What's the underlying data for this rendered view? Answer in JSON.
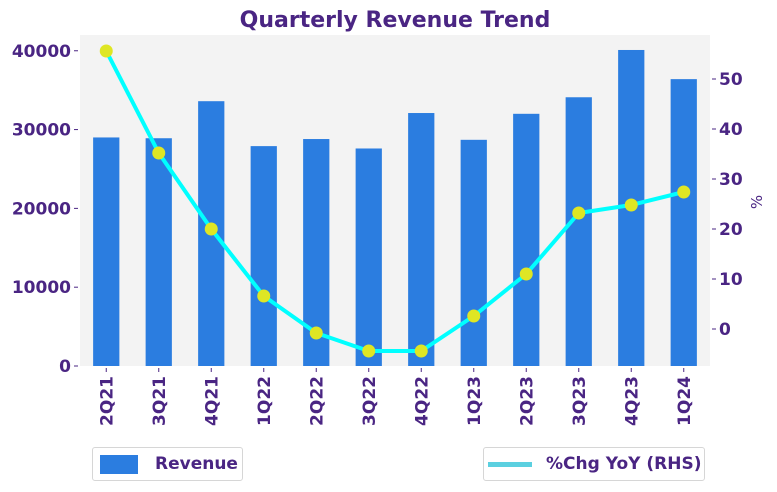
{
  "chart_data": {
    "type": "bar",
    "title": "Quarterly Revenue Trend",
    "xlabel": "",
    "ylabel": "",
    "y2label": "%",
    "categories": [
      "2Q21",
      "3Q21",
      "4Q21",
      "1Q22",
      "2Q22",
      "3Q22",
      "4Q22",
      "1Q23",
      "2Q23",
      "3Q23",
      "4Q23",
      "1Q24"
    ],
    "series": [
      {
        "name": "Revenue",
        "type": "bar",
        "axis": "left",
        "color": "#2b7de0",
        "values": [
          29000,
          28900,
          33600,
          27900,
          28800,
          27600,
          32100,
          28700,
          32000,
          34100,
          40100,
          36400
        ]
      },
      {
        "name": "%Chg YoY (RHS)",
        "type": "line",
        "axis": "right",
        "color": "#00ffff",
        "legend_color": "#5bd0e0",
        "marker_color": "#dfe624",
        "values": [
          55.6,
          35.2,
          20.0,
          6.6,
          -0.8,
          -4.4,
          -4.4,
          2.6,
          11.0,
          23.2,
          24.8,
          27.4
        ]
      }
    ],
    "ylim": [
      0,
      42000
    ],
    "y2lim": [
      -7.4,
      58.8
    ],
    "yticks": [
      0,
      10000,
      20000,
      30000,
      40000
    ],
    "ytick_labels": [
      "0",
      "10000",
      "20000",
      "30000",
      "40000"
    ],
    "y2ticks": [
      0,
      10,
      20,
      30,
      40,
      50
    ],
    "y2tick_labels": [
      "0",
      "10",
      "20",
      "30",
      "40",
      "50"
    ],
    "grid": false,
    "plot_background": "#f3f3f3",
    "text_color": "#4a2583",
    "legend": [
      {
        "label": "Revenue",
        "placement": "bottom-left"
      },
      {
        "label": "%Chg YoY (RHS)",
        "placement": "bottom-right"
      }
    ]
  }
}
